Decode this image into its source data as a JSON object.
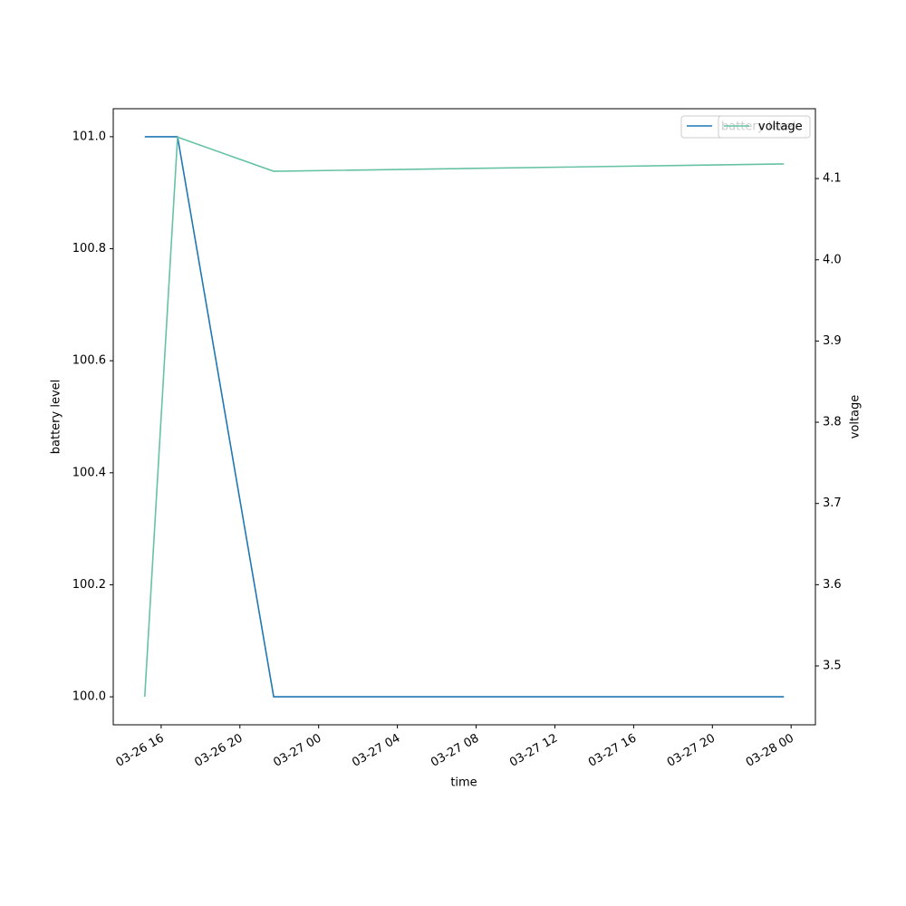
{
  "chart_data": {
    "type": "line",
    "x": [
      "03-26 15:10",
      "03-26 16:50",
      "03-26 21:43",
      "03-27 23:38"
    ],
    "xlim": [
      "03-26 13:34",
      "03-28 01:14"
    ],
    "xticks": [
      "03-26 16",
      "03-26 20",
      "03-27 00",
      "03-27 04",
      "03-27 08",
      "03-27 12",
      "03-27 16",
      "03-27 20",
      "03-28 00"
    ],
    "xlabel": "time",
    "ylabel": "battery level",
    "y2label": "voltage",
    "ylim": [
      99.95,
      101.05
    ],
    "yticks": [
      {
        "value": 100,
        "label": "100.0"
      },
      100.2,
      100.4,
      100.6,
      100.8,
      {
        "value": 101,
        "label": "101.0"
      }
    ],
    "y2lim": [
      3.4275,
      4.186
    ],
    "y2ticks": [
      3.5,
      3.6,
      3.7,
      3.8,
      3.9,
      {
        "value": 4,
        "label": "4.0"
      },
      4.1
    ],
    "legend": "upper right",
    "series": [
      {
        "name": "battery level",
        "color": "#1f77b4",
        "values": [
          101,
          101,
          100,
          100
        ]
      },
      {
        "name": "voltage",
        "color": "#66c2a5",
        "axis": "y2",
        "values": [
          3.462,
          4.151,
          4.109,
          4.118
        ]
      }
    ]
  }
}
